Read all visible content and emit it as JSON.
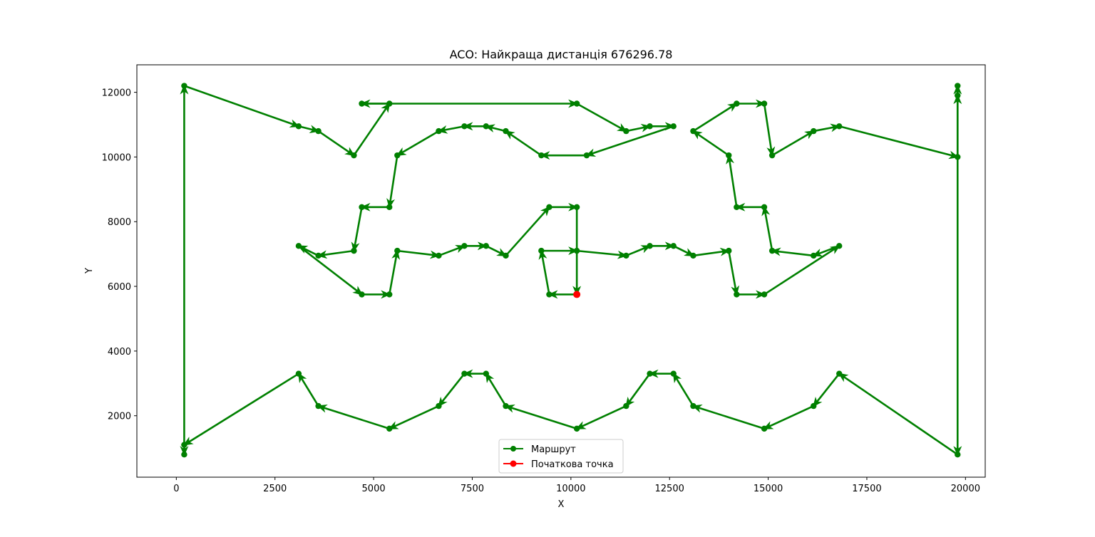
{
  "chart_data": {
    "type": "line",
    "title": "ACO: Найкраща дистанція 676296.78",
    "xlabel": "X",
    "ylabel": "Y",
    "xlim": [
      -1000,
      20500
    ],
    "ylim": [
      100,
      12850
    ],
    "xticks": [
      0,
      2500,
      5000,
      7500,
      10000,
      12500,
      15000,
      17500,
      20000
    ],
    "yticks": [
      2000,
      4000,
      6000,
      8000,
      10000,
      12000
    ],
    "grid": false,
    "legend_position": "lower-center",
    "colors": {
      "route": "#008000",
      "start": "#ff0000"
    },
    "series": [
      {
        "name": "Маршрут",
        "x": [
          10150,
          9450,
          9250,
          10150,
          11400,
          12000,
          12600,
          13100,
          14000,
          14200,
          14900,
          16800,
          16150,
          15100,
          14900,
          14200,
          14000,
          13100,
          14200,
          14900,
          15100,
          16150,
          16800,
          19800,
          19800,
          19800,
          19800,
          16800,
          16150,
          14900,
          13100,
          12600,
          12000,
          11400,
          10150,
          8350,
          7850,
          7300,
          6650,
          5400,
          3600,
          3100,
          200,
          200,
          200,
          3100,
          3600,
          4500,
          5400,
          4700,
          10150,
          11400,
          12000,
          12600,
          10400,
          9250,
          8350,
          7850,
          7300,
          6650,
          5600,
          5400,
          4700,
          4500,
          3600,
          3100,
          4700,
          5400,
          5600,
          6650,
          7300,
          7850,
          8350,
          9450,
          10150,
          10150
        ],
        "y": [
          5750,
          5750,
          7100,
          7100,
          6950,
          7250,
          7250,
          6950,
          7100,
          5750,
          5750,
          7250,
          6950,
          7100,
          8450,
          8450,
          10050,
          10800,
          11650,
          11650,
          10050,
          10800,
          10950,
          10000,
          11900,
          12200,
          800,
          3300,
          2300,
          1600,
          2300,
          3300,
          3300,
          2300,
          1600,
          2300,
          3300,
          3300,
          2300,
          1600,
          2300,
          3300,
          1100,
          800,
          12200,
          10950,
          10800,
          10050,
          11650,
          11650,
          11650,
          10800,
          10950,
          10950,
          10050,
          10050,
          10800,
          10950,
          10950,
          10800,
          10050,
          8450,
          8450,
          7100,
          6950,
          7250,
          5750,
          5750,
          7100,
          6950,
          7250,
          7250,
          6950,
          8450,
          8450,
          5750
        ]
      },
      {
        "name": "Початкова точка",
        "x": [
          10150
        ],
        "y": [
          5750
        ]
      }
    ]
  }
}
